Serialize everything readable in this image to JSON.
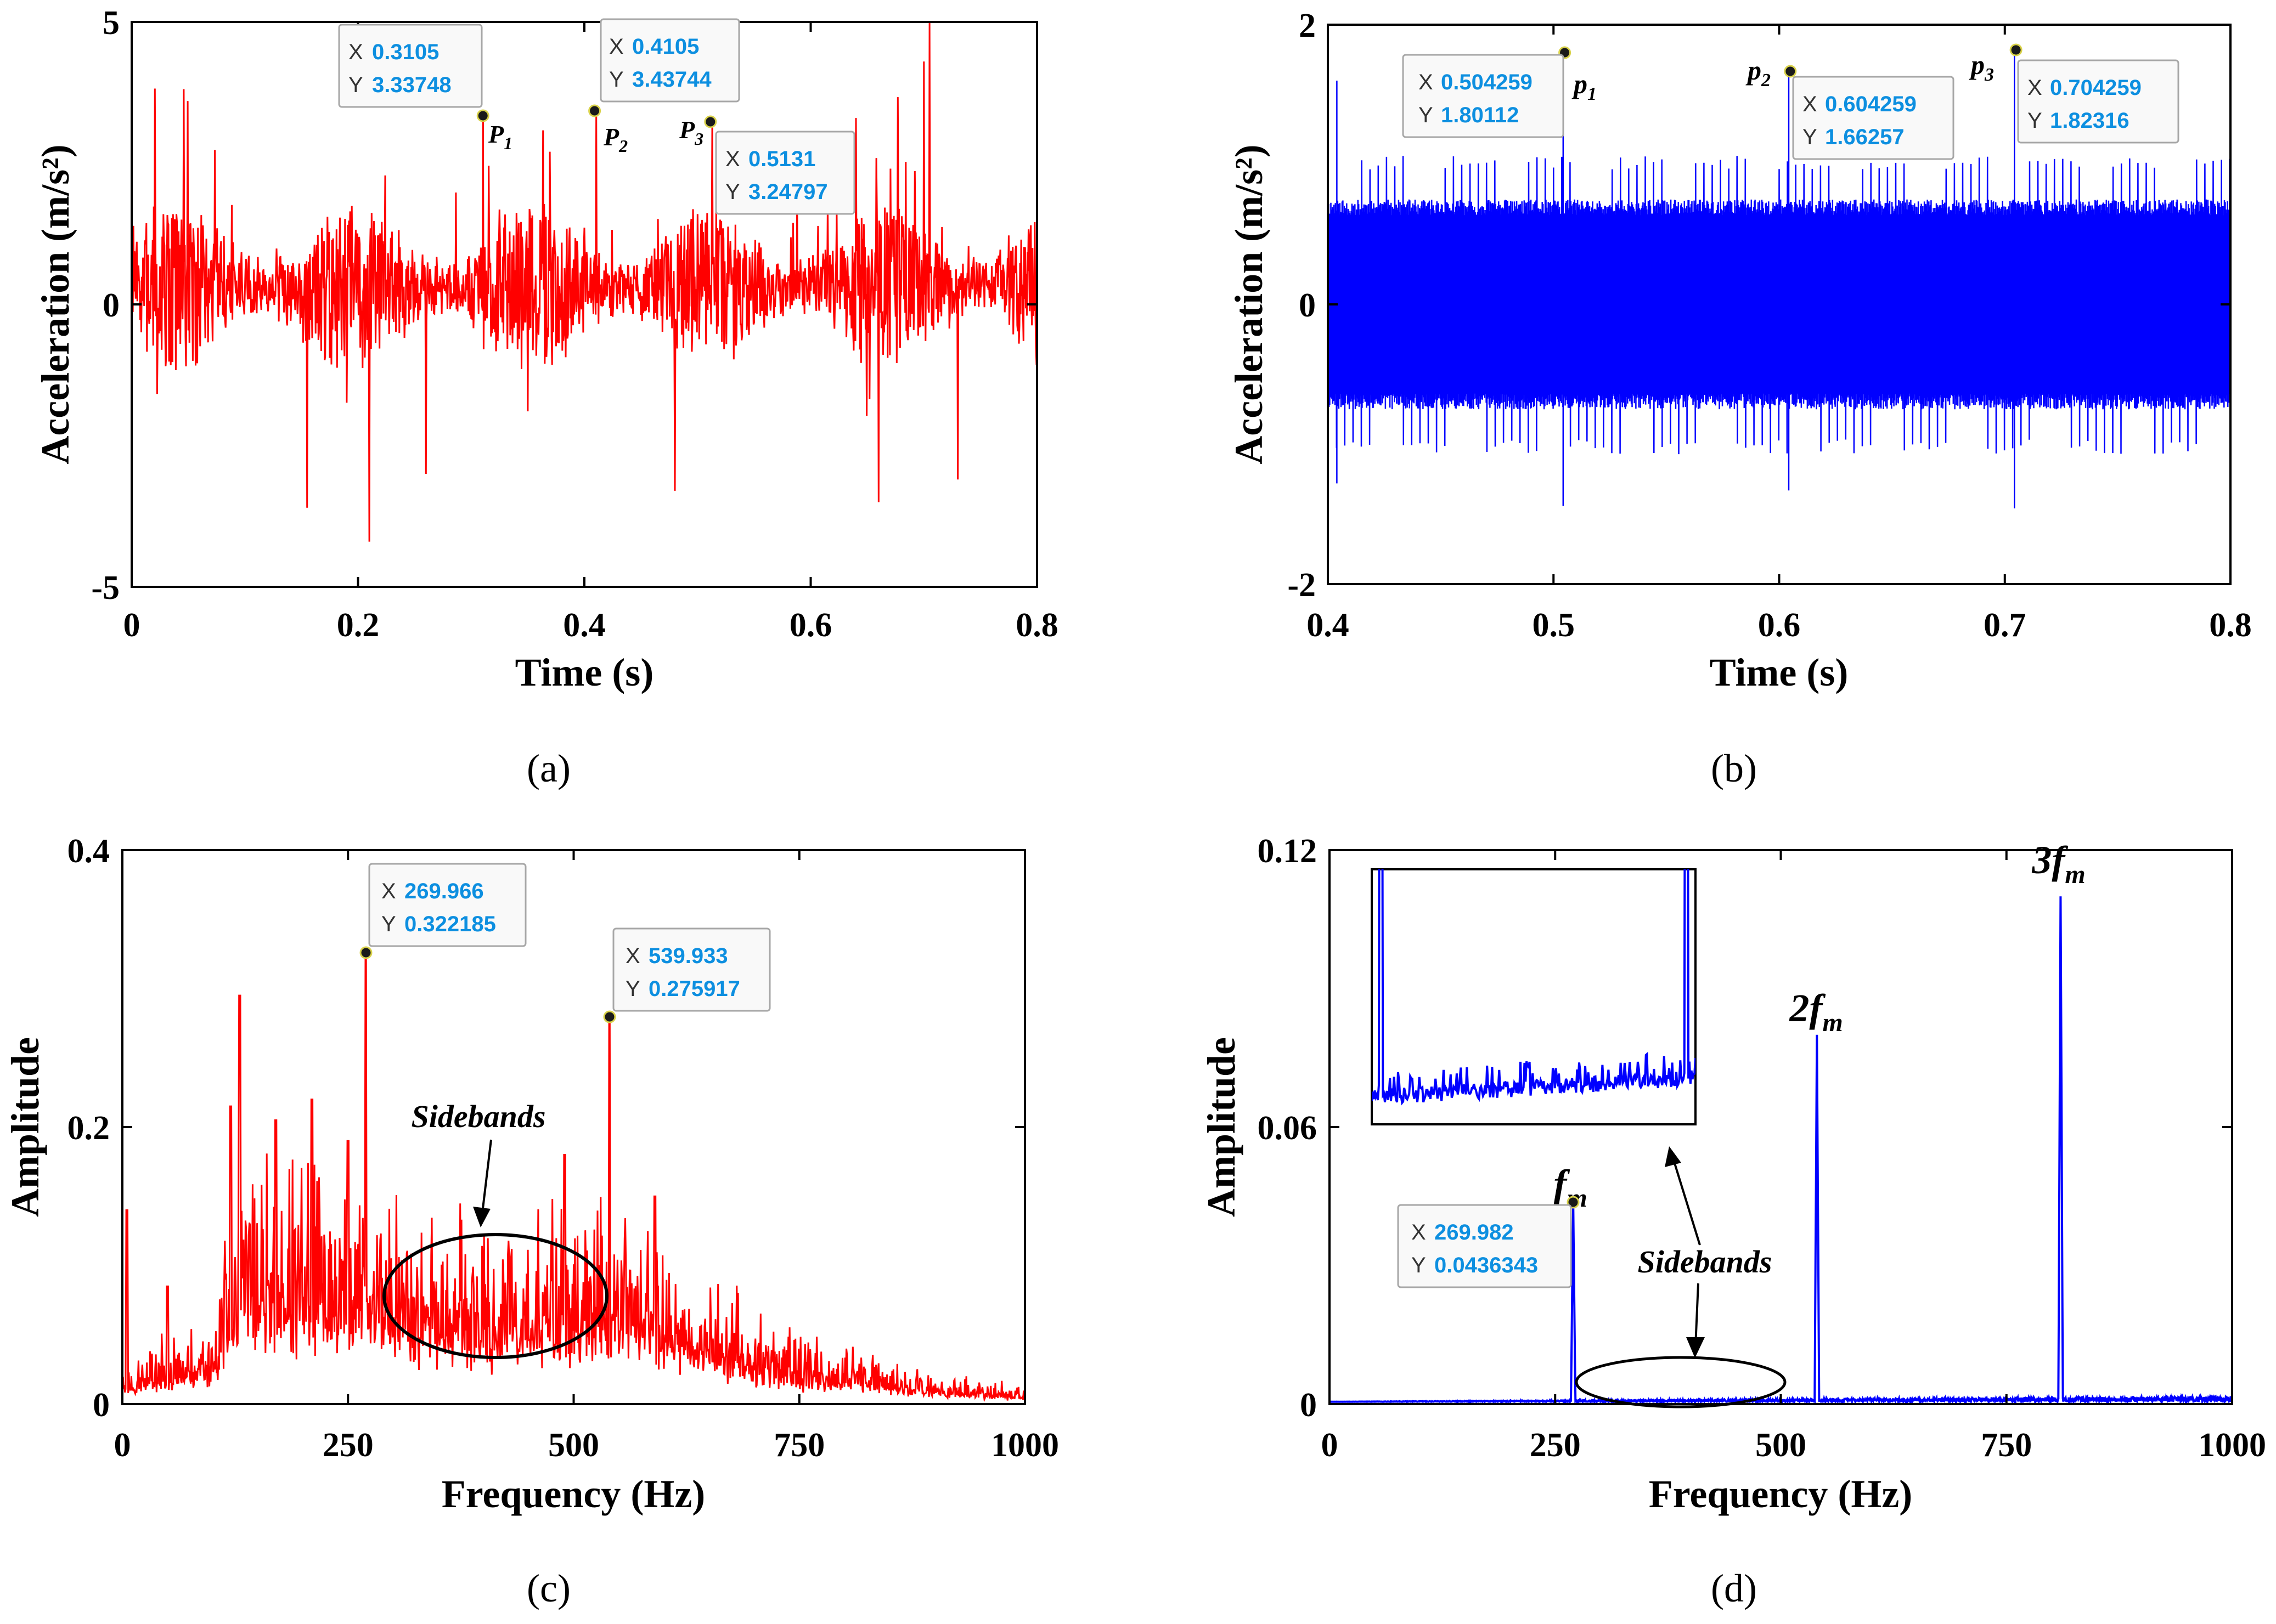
{
  "chart_data": [
    {
      "id": "a",
      "panel_label": "(a)",
      "type": "line",
      "color": "#ff0000",
      "xlabel": "Time (s)",
      "ylabel": "Acceleration (m/s²)",
      "xlim": [
        0,
        0.8
      ],
      "ylim": [
        -5,
        5
      ],
      "xticks": [
        "0",
        "0.2",
        "0.4",
        "0.6",
        "0.8"
      ],
      "yticks": [
        "-5",
        "0",
        "5"
      ],
      "signal": {
        "kind": "random_vibration",
        "samples": 1600,
        "noise_amplitude": 0.9,
        "peaks": [
          {
            "x": 0.0495,
            "y": 3.6
          },
          {
            "x": 0.155,
            "y": 3.6
          },
          {
            "x": 0.155,
            "y": -3.6
          },
          {
            "x": 0.21,
            "y": 4.1
          },
          {
            "x": 0.21,
            "y": -4.2
          },
          {
            "x": 0.26,
            "y": -3.0
          },
          {
            "x": 0.48,
            "y": -3.3
          },
          {
            "x": 0.64,
            "y": 3.3
          },
          {
            "x": 0.66,
            "y": -3.5
          },
          {
            "x": 0.705,
            "y": 5.0
          },
          {
            "x": 0.73,
            "y": -3.1
          },
          {
            "x": 0.7,
            "y": 4.3
          }
        ]
      },
      "markers": [
        {
          "label": "P1",
          "x_value": "0.3105",
          "y_value": "3.33748",
          "x": 0.3105,
          "y": 3.33748
        },
        {
          "label": "P2",
          "x_value": "0.4105",
          "y_value": "3.43744",
          "x": 0.4105,
          "y": 3.43744
        },
        {
          "label": "P3",
          "x_value": "0.5131",
          "y_value": "3.24797",
          "x": 0.5131,
          "y": 3.24797
        }
      ]
    },
    {
      "id": "b",
      "panel_label": "(b)",
      "type": "line",
      "color": "#0000ff",
      "xlabel": "Time (s)",
      "ylabel": "Acceleration (m/s²)",
      "xlim": [
        0.4,
        0.8
      ],
      "ylim": [
        -2,
        2
      ],
      "xticks": [
        "0.4",
        "0.5",
        "0.6",
        "0.7",
        "0.8"
      ],
      "yticks": [
        "-2",
        "0",
        "2"
      ],
      "signal": {
        "kind": "periodic_impulses",
        "samples": 2400,
        "band_amplitude": 0.75,
        "impulse_period": 0.0037,
        "impulse_amplitude": 1.05,
        "peaks": [
          {
            "x": 0.404,
            "y": 1.6
          },
          {
            "x": 0.404,
            "y": -1.2
          }
        ]
      },
      "markers": [
        {
          "label": "p1",
          "x_value": "0.504259",
          "y_value": "1.80112",
          "x": 0.504259,
          "y": 1.80112
        },
        {
          "label": "p2",
          "x_value": "0.604259",
          "y_value": "1.66257",
          "x": 0.604259,
          "y": 1.66257
        },
        {
          "label": "p3",
          "x_value": "0.704259",
          "y_value": "1.82316",
          "x": 0.704259,
          "y": 1.82316
        }
      ]
    },
    {
      "id": "c",
      "panel_label": "(c)",
      "type": "line",
      "color": "#ff0000",
      "xlabel": "Frequency (Hz)",
      "ylabel": "Amplitude",
      "xlim": [
        0,
        1000
      ],
      "ylim": [
        0,
        0.4
      ],
      "xticks": [
        "0",
        "250",
        "500",
        "750",
        "1000"
      ],
      "yticks": [
        "0",
        "0.2",
        "0.4"
      ],
      "annotation": "Sidebands",
      "envelope": [
        [
          0,
          0.02
        ],
        [
          100,
          0.04
        ],
        [
          130,
          0.12
        ],
        [
          250,
          0.11
        ],
        [
          400,
          0.08
        ],
        [
          560,
          0.1
        ],
        [
          650,
          0.06
        ],
        [
          760,
          0.03
        ],
        [
          900,
          0.015
        ],
        [
          1000,
          0.008
        ]
      ],
      "peaks": [
        {
          "x": 5,
          "y": 0.14
        },
        {
          "x": 50,
          "y": 0.085
        },
        {
          "x": 120,
          "y": 0.215
        },
        {
          "x": 130,
          "y": 0.295
        },
        {
          "x": 170,
          "y": 0.205
        },
        {
          "x": 210,
          "y": 0.22
        },
        {
          "x": 250,
          "y": 0.19
        },
        {
          "x": 490,
          "y": 0.18
        },
        {
          "x": 590,
          "y": 0.15
        }
      ],
      "markers": [
        {
          "x_value": "269.966",
          "y_value": "0.322185",
          "x": 269.966,
          "y": 0.322185
        },
        {
          "x_value": "539.933",
          "y_value": "0.275917",
          "x": 539.933,
          "y": 0.275917
        }
      ]
    },
    {
      "id": "d",
      "panel_label": "(d)",
      "type": "line",
      "color": "#0000ff",
      "xlabel": "Frequency (Hz)",
      "ylabel": "Amplitude",
      "xlim": [
        0,
        1000
      ],
      "ylim": [
        0,
        0.12
      ],
      "xticks": [
        "0",
        "250",
        "500",
        "750",
        "1000"
      ],
      "yticks": [
        "0",
        "0.06",
        "0.12"
      ],
      "annotation": "Sidebands",
      "baseline": 0.0005,
      "peaks": [
        {
          "x": 269.982,
          "y": 0.0436343
        },
        {
          "x": 540,
          "y": 0.08
        },
        {
          "x": 810,
          "y": 0.11
        }
      ],
      "harmonic_labels": [
        "f",
        "2f",
        "3f"
      ],
      "harmonic_subscript": "m",
      "markers": [
        {
          "x_value": "269.982",
          "y_value": "0.0436343",
          "x": 269.982,
          "y": 0.0436343
        }
      ]
    }
  ]
}
